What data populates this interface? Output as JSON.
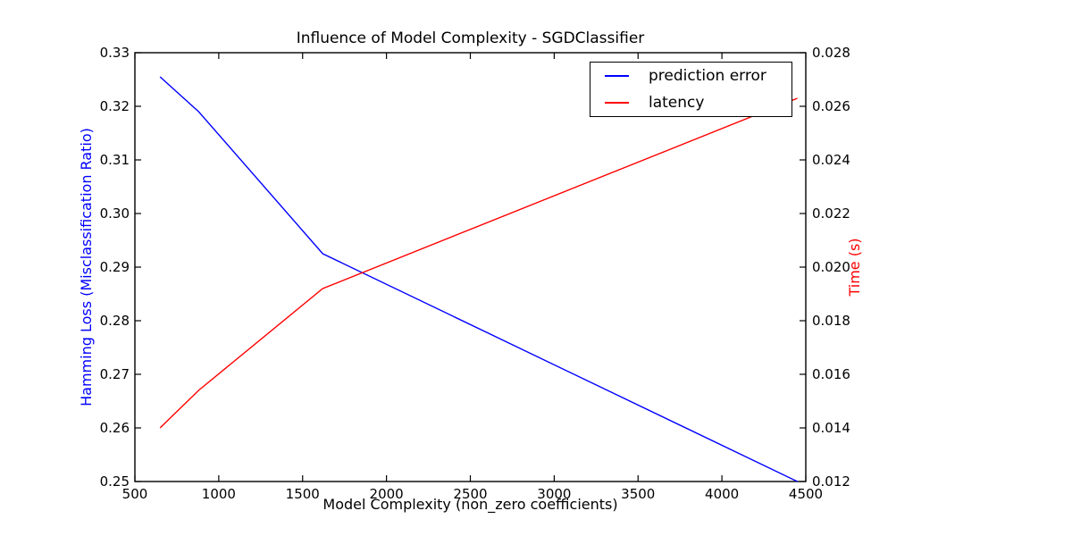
{
  "chart_data": {
    "type": "line",
    "title": "Influence of Model Complexity - SGDClassifier",
    "xlabel": "Model Complexity (non_zero coefficients)",
    "ylabel_left": "Hamming Loss (Misclassification Ratio)",
    "ylabel_right": "Time (s)",
    "xlim": [
      500,
      4500
    ],
    "ylim_left": [
      0.25,
      0.33
    ],
    "ylim_right": [
      0.012,
      0.028
    ],
    "x_ticks": [
      "500",
      "1000",
      "1500",
      "2000",
      "2500",
      "3000",
      "3500",
      "4000",
      "4500"
    ],
    "left_ticks": [
      "0.25",
      "0.26",
      "0.27",
      "0.28",
      "0.29",
      "0.30",
      "0.31",
      "0.32",
      "0.33"
    ],
    "right_ticks": [
      "0.012",
      "0.014",
      "0.016",
      "0.018",
      "0.020",
      "0.022",
      "0.024",
      "0.026",
      "0.028"
    ],
    "axis_colors": {
      "left": "#0000ff",
      "right": "#ff0000"
    },
    "legend_position": "upper right",
    "grid": false,
    "series": [
      {
        "name": "prediction error",
        "color": "#0000ff",
        "axis": "left",
        "x": [
          650,
          880,
          1620,
          4450
        ],
        "y": [
          0.3255,
          0.319,
          0.2925,
          0.25
        ]
      },
      {
        "name": "latency",
        "color": "#ff0000",
        "axis": "right",
        "x": [
          650,
          880,
          1620,
          4450
        ],
        "y": [
          0.014,
          0.0154,
          0.0192,
          0.0263
        ]
      }
    ]
  }
}
